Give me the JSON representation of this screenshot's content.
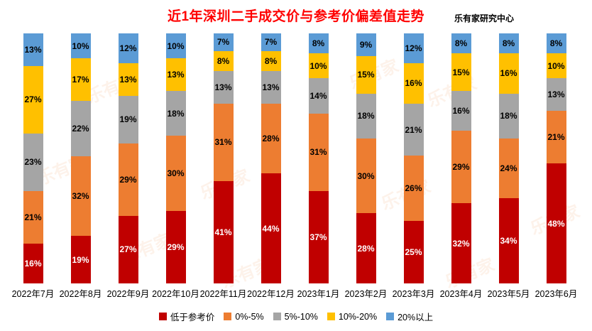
{
  "title": "近1年深圳二手成交价与参考价偏差值走势",
  "source": "乐有家研究中心",
  "watermark": "乐有家",
  "colors": {
    "title": "#FF0000",
    "text": "#000000",
    "background": "#FFFFFF",
    "below_reference": "#C00000",
    "pct_0_5": "#ED7D31",
    "pct_5_10": "#A5A5A5",
    "pct_10_20": "#FFC000",
    "pct_20_plus": "#5B9BD5"
  },
  "chart_data": {
    "type": "bar",
    "stacked": true,
    "percent_stacked": true,
    "title": "近1年深圳二手成交价与参考价偏差值走势",
    "xlabel": "",
    "ylabel": "",
    "ylim": [
      0,
      100
    ],
    "grid": false,
    "legend_position": "bottom",
    "data_labels": true,
    "value_suffix": "%",
    "categories": [
      "2022年7月",
      "2022年8月",
      "2022年9月",
      "2022年10月",
      "2022年11月",
      "2022年12月",
      "2023年1月",
      "2023年2月",
      "2023年3月",
      "2023年4月",
      "2023年5月",
      "2023年6月"
    ],
    "series": [
      {
        "name": "低于参考价",
        "color": "#C00000",
        "label_color": "#FFFFFF",
        "values": [
          16,
          19,
          27,
          29,
          41,
          44,
          37,
          28,
          25,
          32,
          34,
          48
        ]
      },
      {
        "name": "0%-5%",
        "color": "#ED7D31",
        "label_color": "#000000",
        "values": [
          21,
          32,
          29,
          30,
          31,
          28,
          31,
          30,
          26,
          29,
          24,
          21
        ]
      },
      {
        "name": "5%-10%",
        "color": "#A5A5A5",
        "label_color": "#000000",
        "values": [
          23,
          22,
          19,
          18,
          13,
          13,
          14,
          18,
          21,
          16,
          18,
          13
        ]
      },
      {
        "name": "10%-20%",
        "color": "#FFC000",
        "label_color": "#000000",
        "values": [
          27,
          17,
          13,
          13,
          8,
          8,
          10,
          15,
          16,
          15,
          16,
          10
        ]
      },
      {
        "name": "20%以上",
        "color": "#5B9BD5",
        "label_color": "#000000",
        "values": [
          13,
          10,
          12,
          10,
          7,
          7,
          8,
          9,
          12,
          8,
          8,
          8
        ]
      }
    ]
  }
}
